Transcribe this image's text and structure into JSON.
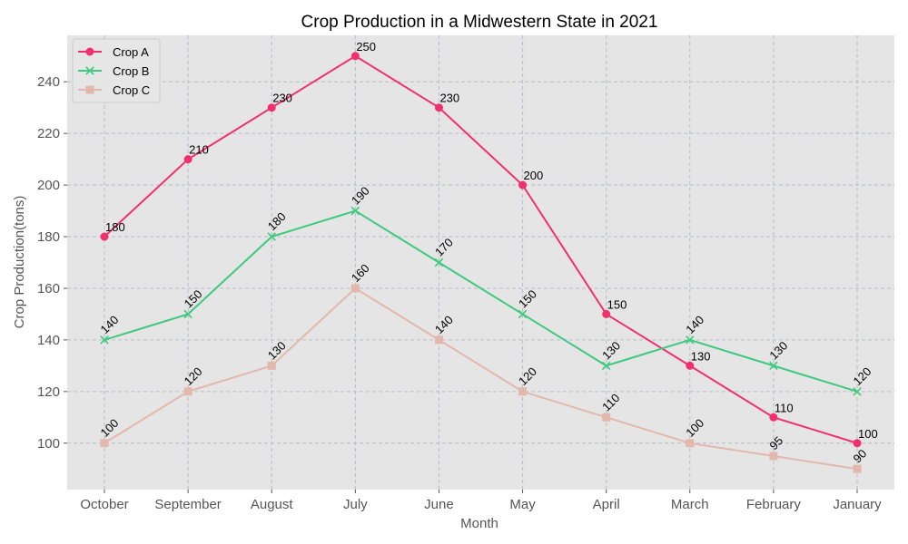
{
  "chart_data": {
    "type": "line",
    "title": "Crop Production in a Midwestern State in 2021",
    "xlabel": "Month",
    "ylabel": "Crop Production(tons)",
    "categories": [
      "October",
      "September",
      "August",
      "July",
      "June",
      "May",
      "April",
      "March",
      "February",
      "January"
    ],
    "ylim": [
      82,
      258
    ],
    "yticks": [
      100,
      120,
      140,
      160,
      180,
      200,
      220,
      240
    ],
    "grid": true,
    "legend_position": "top-left",
    "plot_background": "#e5e5e5",
    "series": [
      {
        "name": "Crop A",
        "color": "#f0306e",
        "marker": "circle",
        "values": [
          180,
          210,
          230,
          250,
          230,
          200,
          150,
          130,
          110,
          100
        ],
        "labels_rotated": false
      },
      {
        "name": "Crop B",
        "color": "#3ec97f",
        "marker": "x",
        "values": [
          140,
          150,
          180,
          190,
          170,
          150,
          130,
          140,
          130,
          120
        ],
        "labels_rotated": true
      },
      {
        "name": "Crop C",
        "color": "#e2b8ac",
        "marker": "square",
        "values": [
          100,
          120,
          130,
          160,
          140,
          120,
          110,
          100,
          95,
          90
        ],
        "labels_rotated": true
      }
    ]
  }
}
